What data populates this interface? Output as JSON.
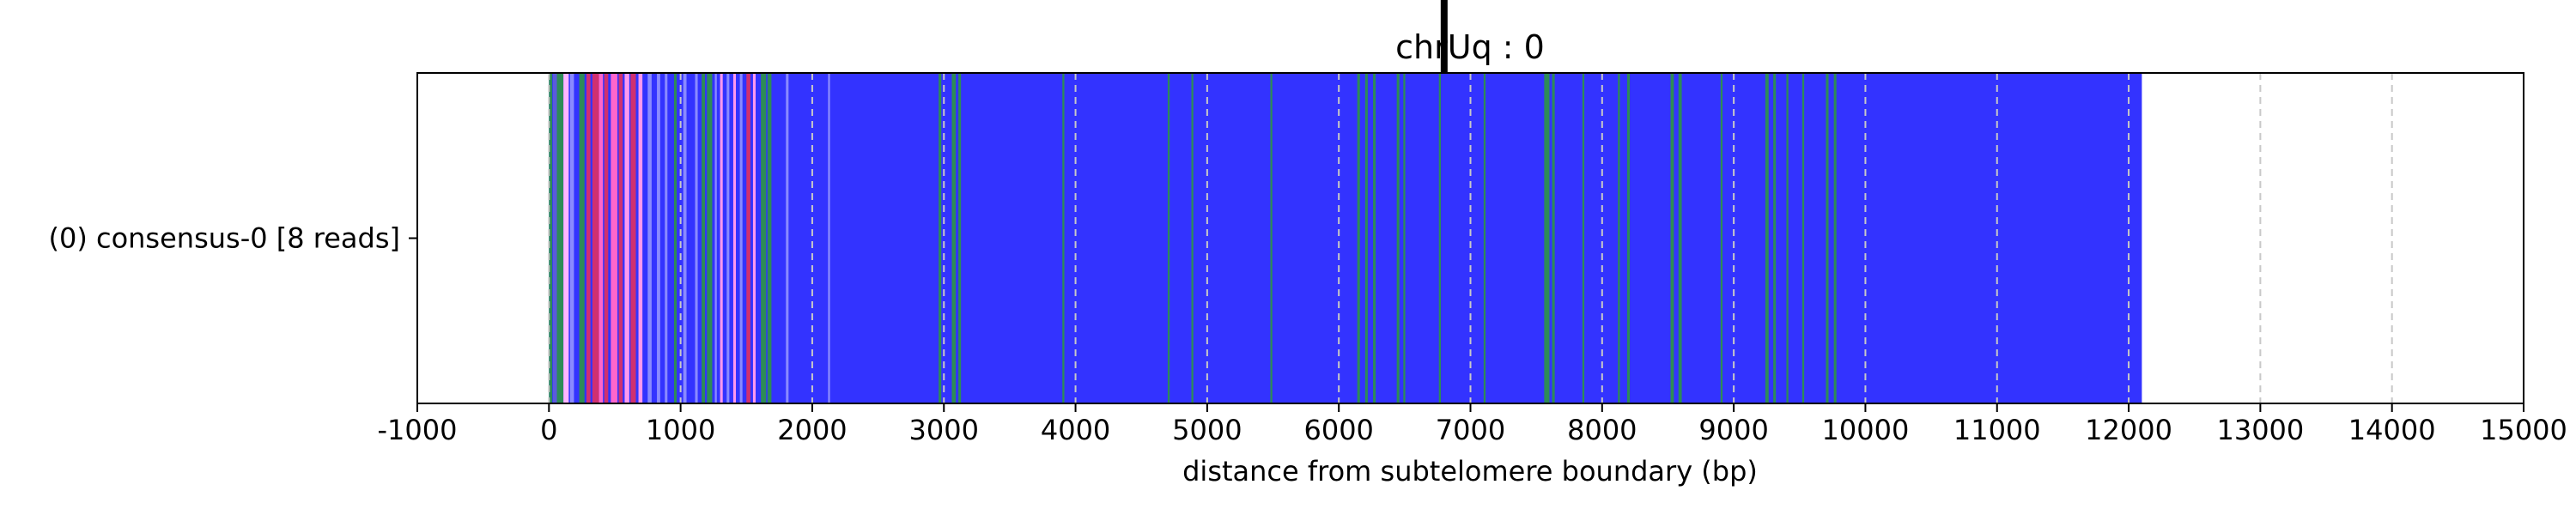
{
  "chart_data": {
    "type": "heatmap",
    "title": "chrUq : 0",
    "xlabel": "distance from subtelomere boundary (bp)",
    "ylabel": "",
    "xlim": [
      -1000,
      15000
    ],
    "xticks": [
      -1000,
      0,
      1000,
      2000,
      3000,
      4000,
      5000,
      6000,
      7000,
      8000,
      9000,
      10000,
      11000,
      12000,
      13000,
      14000,
      15000
    ],
    "xtick_labels": [
      "-1000",
      "0",
      "1000",
      "2000",
      "3000",
      "4000",
      "5000",
      "6000",
      "7000",
      "8000",
      "9000",
      "10000",
      "11000",
      "12000",
      "13000",
      "14000",
      "15000"
    ],
    "grid": "vertical dashed at each x tick",
    "rows": [
      {
        "label": "(0) consensus-0 [8 reads]",
        "start": 0,
        "end": 12100,
        "base_color": "#3333ff"
      }
    ],
    "marker_line": {
      "x": 6800,
      "color": "#000000"
    },
    "color_bands": [
      {
        "x0": 0,
        "x1": 25,
        "color": "#2e8b57"
      },
      {
        "x0": 30,
        "x1": 60,
        "color": "#5a5adc"
      },
      {
        "x0": 60,
        "x1": 110,
        "color": "#2e8b57"
      },
      {
        "x0": 110,
        "x1": 150,
        "color": "#ffb6ff"
      },
      {
        "x0": 160,
        "x1": 190,
        "color": "#8a8aff"
      },
      {
        "x0": 230,
        "x1": 270,
        "color": "#2e8b57"
      },
      {
        "x0": 285,
        "x1": 315,
        "color": "#d03070"
      },
      {
        "x0": 330,
        "x1": 380,
        "color": "#d03070"
      },
      {
        "x0": 380,
        "x1": 410,
        "color": "#ff66cc"
      },
      {
        "x0": 420,
        "x1": 450,
        "color": "#d03070"
      },
      {
        "x0": 470,
        "x1": 520,
        "color": "#ff66cc"
      },
      {
        "x0": 530,
        "x1": 560,
        "color": "#d03070"
      },
      {
        "x0": 575,
        "x1": 610,
        "color": "#ff99ee"
      },
      {
        "x0": 620,
        "x1": 660,
        "color": "#d03070"
      },
      {
        "x0": 680,
        "x1": 710,
        "color": "#ff99ee"
      },
      {
        "x0": 750,
        "x1": 780,
        "color": "#8a8aff"
      },
      {
        "x0": 820,
        "x1": 845,
        "color": "#8a8aff"
      },
      {
        "x0": 880,
        "x1": 900,
        "color": "#8a8aff"
      },
      {
        "x0": 950,
        "x1": 970,
        "color": "#2e8b57"
      },
      {
        "x0": 1020,
        "x1": 1045,
        "color": "#8a8aff"
      },
      {
        "x0": 1110,
        "x1": 1130,
        "color": "#8a8aff"
      },
      {
        "x0": 1160,
        "x1": 1185,
        "color": "#2e8b57"
      },
      {
        "x0": 1200,
        "x1": 1240,
        "color": "#2e8b57"
      },
      {
        "x0": 1260,
        "x1": 1275,
        "color": "#8a8aff"
      },
      {
        "x0": 1300,
        "x1": 1320,
        "color": "#ff99ee"
      },
      {
        "x0": 1350,
        "x1": 1370,
        "color": "#8a8aff"
      },
      {
        "x0": 1400,
        "x1": 1420,
        "color": "#ff99ee"
      },
      {
        "x0": 1450,
        "x1": 1470,
        "color": "#8a8aff"
      },
      {
        "x0": 1500,
        "x1": 1530,
        "color": "#d03070"
      },
      {
        "x0": 1550,
        "x1": 1570,
        "color": "#ff99ee"
      },
      {
        "x0": 1610,
        "x1": 1650,
        "color": "#2e8b57"
      },
      {
        "x0": 1660,
        "x1": 1690,
        "color": "#2e8b57"
      },
      {
        "x0": 1800,
        "x1": 1820,
        "color": "#8a8aff"
      },
      {
        "x0": 2120,
        "x1": 2135,
        "color": "#8a8aff"
      },
      {
        "x0": 2960,
        "x1": 2980,
        "color": "#2e8b57"
      },
      {
        "x0": 3060,
        "x1": 3090,
        "color": "#2e8b57"
      },
      {
        "x0": 3110,
        "x1": 3130,
        "color": "#2e8b57"
      },
      {
        "x0": 3900,
        "x1": 3915,
        "color": "#2e8b57"
      },
      {
        "x0": 4700,
        "x1": 4715,
        "color": "#2e8b57"
      },
      {
        "x0": 4880,
        "x1": 4895,
        "color": "#2e8b57"
      },
      {
        "x0": 5480,
        "x1": 5495,
        "color": "#2e8b57"
      },
      {
        "x0": 6140,
        "x1": 6160,
        "color": "#2e8b57"
      },
      {
        "x0": 6200,
        "x1": 6220,
        "color": "#2e8b57"
      },
      {
        "x0": 6260,
        "x1": 6280,
        "color": "#2e8b57"
      },
      {
        "x0": 6440,
        "x1": 6460,
        "color": "#2e8b57"
      },
      {
        "x0": 6490,
        "x1": 6505,
        "color": "#2e8b57"
      },
      {
        "x0": 6760,
        "x1": 6775,
        "color": "#2e8b57"
      },
      {
        "x0": 7100,
        "x1": 7115,
        "color": "#2e8b57"
      },
      {
        "x0": 7560,
        "x1": 7600,
        "color": "#2e8b57"
      },
      {
        "x0": 7620,
        "x1": 7640,
        "color": "#2e8b57"
      },
      {
        "x0": 7850,
        "x1": 7865,
        "color": "#2e8b57"
      },
      {
        "x0": 8120,
        "x1": 8135,
        "color": "#2e8b57"
      },
      {
        "x0": 8190,
        "x1": 8210,
        "color": "#2e8b57"
      },
      {
        "x0": 8520,
        "x1": 8545,
        "color": "#2e8b57"
      },
      {
        "x0": 8580,
        "x1": 8605,
        "color": "#2e8b57"
      },
      {
        "x0": 8900,
        "x1": 8915,
        "color": "#2e8b57"
      },
      {
        "x0": 9240,
        "x1": 9265,
        "color": "#2e8b57"
      },
      {
        "x0": 9300,
        "x1": 9320,
        "color": "#2e8b57"
      },
      {
        "x0": 9400,
        "x1": 9415,
        "color": "#2e8b57"
      },
      {
        "x0": 9520,
        "x1": 9535,
        "color": "#2e8b57"
      },
      {
        "x0": 9700,
        "x1": 9720,
        "color": "#2e8b57"
      },
      {
        "x0": 9760,
        "x1": 9780,
        "color": "#2e8b57"
      }
    ]
  }
}
